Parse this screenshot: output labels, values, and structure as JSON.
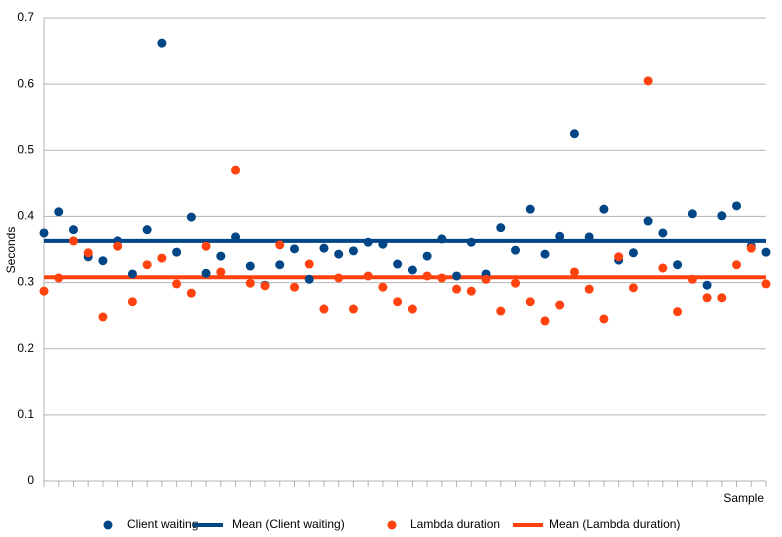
{
  "chart_data": {
    "type": "scatter",
    "ylabel": "Seconds",
    "xlabel": "Sample",
    "categories": [
      null,
      null,
      null,
      null,
      null,
      null,
      null,
      null,
      null,
      null,
      null,
      null,
      null,
      null,
      null,
      null,
      null,
      null,
      null,
      null,
      null,
      null,
      null,
      null,
      null,
      null,
      null,
      null,
      null,
      null,
      null,
      null,
      null,
      null,
      null,
      null,
      null,
      null,
      null,
      null,
      null,
      null,
      null,
      null,
      null,
      null,
      null,
      null,
      null,
      null
    ],
    "ylim": [
      0,
      0.7
    ],
    "yticks": [
      0,
      0.1,
      0.2,
      0.3,
      0.4,
      0.5,
      0.6,
      0.7
    ],
    "grid": true,
    "series": [
      {
        "name": "Client waiting",
        "color": "#004586",
        "values": [
          0.375,
          0.407,
          0.38,
          0.339,
          0.333,
          0.363,
          0.313,
          0.38,
          0.662,
          0.346,
          0.399,
          0.314,
          0.34,
          0.369,
          0.325,
          0.296,
          0.327,
          0.351,
          0.305,
          0.352,
          0.343,
          0.348,
          0.361,
          0.358,
          0.328,
          0.319,
          0.34,
          0.366,
          0.31,
          0.361,
          0.313,
          0.383,
          0.349,
          0.411,
          0.343,
          0.37,
          0.525,
          0.369,
          0.411,
          0.334,
          0.345,
          0.393,
          0.375,
          0.327,
          0.404,
          0.296,
          0.401,
          0.416,
          0.355,
          0.346
        ]
      },
      {
        "name": "Mean (Client waiting)",
        "color": "#004586",
        "mean": 0.363
      },
      {
        "name": "Lambda duration",
        "color": "#ff420e",
        "values": [
          0.287,
          0.307,
          0.363,
          0.345,
          0.248,
          0.355,
          0.271,
          0.327,
          0.337,
          0.298,
          0.284,
          0.355,
          0.316,
          0.47,
          0.299,
          0.295,
          0.357,
          0.293,
          0.328,
          0.26,
          0.307,
          0.26,
          0.31,
          0.293,
          0.271,
          0.26,
          0.31,
          0.307,
          0.29,
          0.287,
          0.305,
          0.257,
          0.299,
          0.271,
          0.242,
          0.266,
          0.316,
          0.29,
          0.245,
          0.339,
          0.292,
          0.605,
          0.322,
          0.256,
          0.305,
          0.277,
          0.277,
          0.327,
          0.352,
          0.298
        ]
      },
      {
        "name": "Mean (Lambda duration)",
        "color": "#ff420e",
        "mean": 0.308
      }
    ]
  }
}
